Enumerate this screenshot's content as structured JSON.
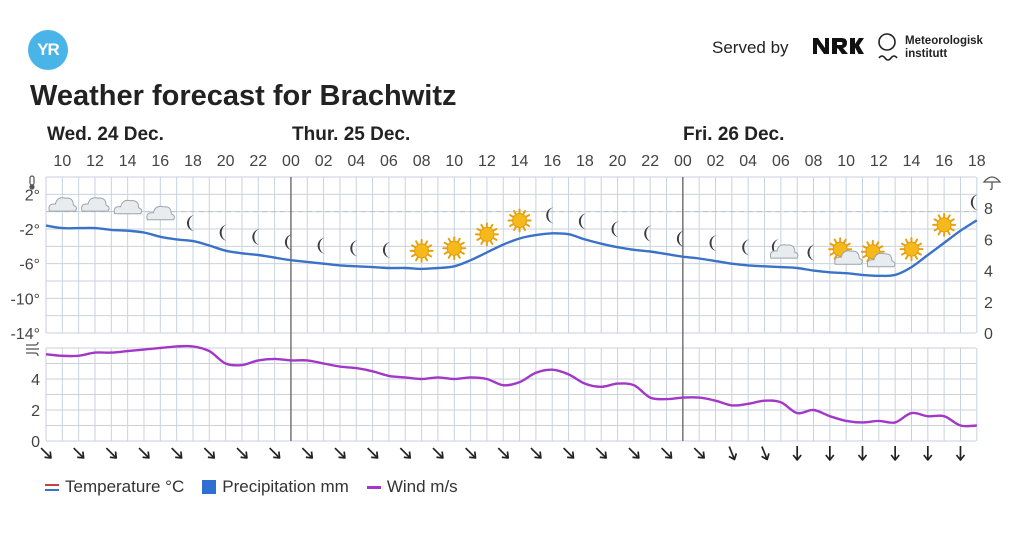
{
  "brand": {
    "logo_text": "YR",
    "served_by": "Served by",
    "partner_1": "NRK",
    "partner_2_line1": "Meteorologisk",
    "partner_2_line2": "institutt"
  },
  "title": "Weather forecast for Brachwitz",
  "legend": {
    "temperature": "Temperature °C",
    "precipitation": "Precipitation mm",
    "wind": "Wind m/s"
  },
  "colors": {
    "temperature": "#3a72c8",
    "wind": "#a238c8",
    "precipitation": "#2f6fd2",
    "grid": "#c9d2dc",
    "day_divider": "#555555",
    "accent": "#48b4e8"
  },
  "chart_data": [
    {
      "type": "line",
      "name": "temperature",
      "days": [
        "Wed. 24 Dec.",
        "Thur. 25 Dec.",
        "Fri. 26 Dec."
      ],
      "hour_ticks": [
        "10",
        "12",
        "14",
        "16",
        "18",
        "20",
        "22",
        "00",
        "02",
        "04",
        "06",
        "08",
        "10",
        "12",
        "14",
        "16",
        "18",
        "20",
        "22",
        "00",
        "02",
        "04",
        "06",
        "08",
        "10",
        "12",
        "14",
        "16",
        "18"
      ],
      "y_ticks_left": [
        "2°",
        "-2°",
        "-6°",
        "-10°",
        "-14°"
      ],
      "y_ticks_right": [
        "8",
        "6",
        "4",
        "2",
        "0"
      ],
      "ylim": [
        -14,
        4
      ],
      "y2lim": [
        0,
        10
      ],
      "x": [
        "Wed 09",
        "Wed 10",
        "Wed 11",
        "Wed 12",
        "Wed 13",
        "Wed 14",
        "Wed 15",
        "Wed 16",
        "Wed 17",
        "Wed 18",
        "Wed 19",
        "Wed 20",
        "Wed 21",
        "Wed 22",
        "Wed 23",
        "Thu 00",
        "Thu 01",
        "Thu 02",
        "Thu 03",
        "Thu 04",
        "Thu 05",
        "Thu 06",
        "Thu 07",
        "Thu 08",
        "Thu 09",
        "Thu 10",
        "Thu 11",
        "Thu 12",
        "Thu 13",
        "Thu 14",
        "Thu 15",
        "Thu 16",
        "Thu 17",
        "Thu 18",
        "Thu 19",
        "Thu 20",
        "Thu 21",
        "Thu 22",
        "Thu 23",
        "Fri 00",
        "Fri 01",
        "Fri 02",
        "Fri 03",
        "Fri 04",
        "Fri 05",
        "Fri 06",
        "Fri 07",
        "Fri 08",
        "Fri 09",
        "Fri 10",
        "Fri 11",
        "Fri 12",
        "Fri 13",
        "Fri 14",
        "Fri 15",
        "Fri 16",
        "Fri 17",
        "Fri 18"
      ],
      "values": [
        -1.6,
        -1.9,
        -1.9,
        -1.9,
        -2.1,
        -2.2,
        -2.4,
        -2.9,
        -3.2,
        -3.4,
        -3.9,
        -4.5,
        -4.8,
        -5.0,
        -5.3,
        -5.6,
        -5.8,
        -6.0,
        -6.2,
        -6.3,
        -6.4,
        -6.5,
        -6.5,
        -6.6,
        -6.5,
        -6.3,
        -5.6,
        -4.7,
        -3.8,
        -3.1,
        -2.7,
        -2.5,
        -2.6,
        -3.2,
        -3.7,
        -4.1,
        -4.4,
        -4.6,
        -4.9,
        -5.2,
        -5.4,
        -5.7,
        -6.0,
        -6.2,
        -6.3,
        -6.4,
        -6.5,
        -6.8,
        -7.0,
        -7.1,
        -7.3,
        -7.4,
        -7.3,
        -6.4,
        -5.0,
        -3.6,
        -2.2,
        -1.0
      ]
    },
    {
      "type": "line",
      "name": "wind",
      "y_ticks": [
        "4",
        "2",
        "0"
      ],
      "ylim": [
        0,
        6
      ],
      "values": [
        5.6,
        5.5,
        5.5,
        5.7,
        5.7,
        5.8,
        5.9,
        6.0,
        6.1,
        6.1,
        5.8,
        5.0,
        4.9,
        5.2,
        5.3,
        5.2,
        5.2,
        5.0,
        4.8,
        4.7,
        4.5,
        4.2,
        4.1,
        4.0,
        4.1,
        4.0,
        4.1,
        4.0,
        3.6,
        3.8,
        4.4,
        4.6,
        4.3,
        3.7,
        3.5,
        3.7,
        3.6,
        2.8,
        2.7,
        2.8,
        2.8,
        2.6,
        2.3,
        2.4,
        2.6,
        2.5,
        1.8,
        2.0,
        1.6,
        1.3,
        1.2,
        1.3,
        1.2,
        1.8,
        1.6,
        1.6,
        1.0,
        1.0
      ]
    }
  ],
  "weather_icons": [
    "cloud",
    "cloud",
    "cloud",
    "cloud",
    "moon",
    "moon",
    "moon",
    "moon",
    "moon",
    "moon",
    "moon",
    "sun",
    "sun",
    "sun",
    "sun",
    "moon",
    "moon",
    "moon",
    "moon",
    "moon",
    "moon",
    "moon",
    "moon-cloud",
    "moon",
    "sun-cloud",
    "sun-cloud",
    "sun",
    "sun",
    "moon"
  ],
  "wind_arrows": [
    "arrow-sw",
    "arrow-sw",
    "arrow-sw",
    "arrow-sw",
    "arrow-sw",
    "arrow-sw",
    "arrow-sw",
    "arrow-sw",
    "arrow-sw",
    "arrow-sw",
    "arrow-sw",
    "arrow-sw",
    "arrow-sw",
    "arrow-sw",
    "arrow-sw",
    "arrow-sw",
    "arrow-sw",
    "arrow-sw",
    "arrow-sw",
    "arrow-sw",
    "arrow-sw",
    "arrow-ssw",
    "arrow-ssw",
    "arrow-s",
    "arrow-s",
    "arrow-s",
    "arrow-s",
    "arrow-s",
    "arrow-s"
  ]
}
